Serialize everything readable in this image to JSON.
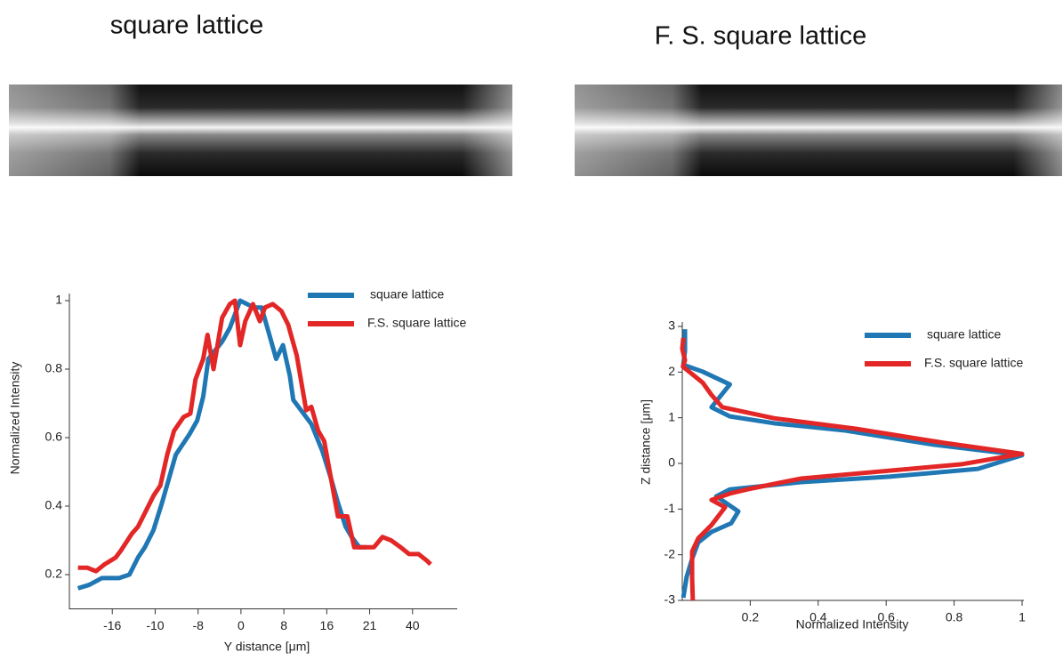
{
  "panels": [
    {
      "title": "square lattice"
    },
    {
      "title": "F. S. square lattice"
    }
  ],
  "chart_data": [
    {
      "type": "line",
      "xlabel": "Y distance [μm]",
      "ylabel": "Normalized Intensity",
      "xlim": [
        0,
        45
      ],
      "ylim": [
        0.1,
        1
      ],
      "xticks": [
        {
          "value": 5,
          "label": "-16"
        },
        {
          "value": 10,
          "label": "-10"
        },
        {
          "value": 15,
          "label": "-8"
        },
        {
          "value": 20,
          "label": "0"
        },
        {
          "value": 25,
          "label": "8"
        },
        {
          "value": 30,
          "label": "16"
        },
        {
          "value": 35,
          "label": "21"
        },
        40
      ],
      "yticks": [
        0.2,
        0.4,
        0.6,
        0.8,
        1
      ],
      "legend": "upper right",
      "series": [
        {
          "name": "square lattice",
          "color": "#1f77b4",
          "x": [
            1,
            2.3,
            3.8,
            5.8,
            7,
            8,
            8.8,
            9.8,
            10.8,
            11.6,
            12.4,
            14,
            14.9,
            15.6,
            16.2,
            17.8,
            18.7,
            19.3,
            19.9,
            21.5,
            22.4,
            23.2,
            24.1,
            24.9,
            25.7,
            26.1,
            28.2,
            29.5,
            30.5,
            31.3,
            32.2,
            32.9,
            33.8,
            34.6
          ],
          "values": [
            0.16,
            0.17,
            0.19,
            0.19,
            0.2,
            0.25,
            0.28,
            0.33,
            0.41,
            0.48,
            0.55,
            0.61,
            0.65,
            0.72,
            0.83,
            0.88,
            0.92,
            0.96,
            1.0,
            0.98,
            0.98,
            0.91,
            0.83,
            0.87,
            0.78,
            0.71,
            0.64,
            0.56,
            0.48,
            0.41,
            0.34,
            0.31,
            0.28,
            0.28
          ]
        },
        {
          "name": "F.S. square lattice",
          "color": "#e32626",
          "x": [
            1,
            2.1,
            3.1,
            4.1,
            5.4,
            6,
            7.3,
            8,
            9,
            9.8,
            10.6,
            11.4,
            12.2,
            13.3,
            14.1,
            14.7,
            15.6,
            16.1,
            16.8,
            17.8,
            18.7,
            19.3,
            19.9,
            20.5,
            21.4,
            22.2,
            22.8,
            23.7,
            24.7,
            25.5,
            26.5,
            27.6,
            28.2,
            29,
            29.7,
            30.5,
            31.3,
            32.4,
            33.2,
            34.2,
            35.5,
            36.5,
            37.5,
            38.6,
            39.6,
            40.7,
            41.7,
            42.1
          ],
          "values": [
            0.22,
            0.22,
            0.21,
            0.23,
            0.25,
            0.27,
            0.32,
            0.34,
            0.39,
            0.43,
            0.46,
            0.55,
            0.62,
            0.66,
            0.67,
            0.77,
            0.83,
            0.9,
            0.8,
            0.95,
            0.99,
            1.0,
            0.87,
            0.94,
            0.99,
            0.94,
            0.98,
            0.99,
            0.97,
            0.93,
            0.84,
            0.68,
            0.69,
            0.62,
            0.59,
            0.48,
            0.37,
            0.37,
            0.28,
            0.28,
            0.28,
            0.31,
            0.3,
            0.28,
            0.26,
            0.26,
            0.24,
            0.23
          ]
        }
      ]
    },
    {
      "type": "line",
      "xlabel": "Normalized Intensity",
      "ylabel": "Z distance [μm]",
      "xlim": [
        0,
        1
      ],
      "ylim": [
        -3,
        3
      ],
      "xticks": [
        0.2,
        0.4,
        0.6,
        0.8,
        1
      ],
      "yticks": [
        -3,
        -2,
        -1,
        0,
        1,
        2,
        3
      ],
      "legend": "upper right",
      "series": [
        {
          "name": "square lattice",
          "color": "#1f77b4",
          "x": [
            0.008,
            0.008,
            0.003,
            0.06,
            0.14,
            0.086,
            0.14,
            0.27,
            0.48,
            0.74,
            1.0,
            0.87,
            0.61,
            0.35,
            0.14,
            0.1,
            0.165,
            0.144,
            0.086,
            0.047,
            0.029,
            0.013,
            0.003
          ],
          "values": [
            2.94,
            2.46,
            2.16,
            2.01,
            1.73,
            1.23,
            1.03,
            0.88,
            0.72,
            0.41,
            0.18,
            -0.12,
            -0.29,
            -0.41,
            -0.57,
            -0.72,
            -1.05,
            -1.31,
            -1.5,
            -1.73,
            -2.09,
            -2.48,
            -2.94
          ]
        },
        {
          "name": "F.S. square lattice",
          "color": "#e32626",
          "x": [
            0.003,
            0.0,
            0.008,
            0.002,
            0.06,
            0.086,
            0.118,
            0.27,
            0.51,
            0.77,
            1.0,
            0.82,
            0.35,
            0.19,
            0.14,
            0.086,
            0.126,
            0.086,
            0.047,
            0.029,
            0.029,
            0.031
          ],
          "values": [
            2.75,
            2.51,
            2.26,
            2.12,
            1.77,
            1.5,
            1.23,
            0.99,
            0.76,
            0.45,
            0.21,
            -0.02,
            -0.33,
            -0.57,
            -0.66,
            -0.8,
            -0.96,
            -1.35,
            -1.64,
            -1.93,
            -2.51,
            -3.0
          ]
        }
      ]
    }
  ]
}
